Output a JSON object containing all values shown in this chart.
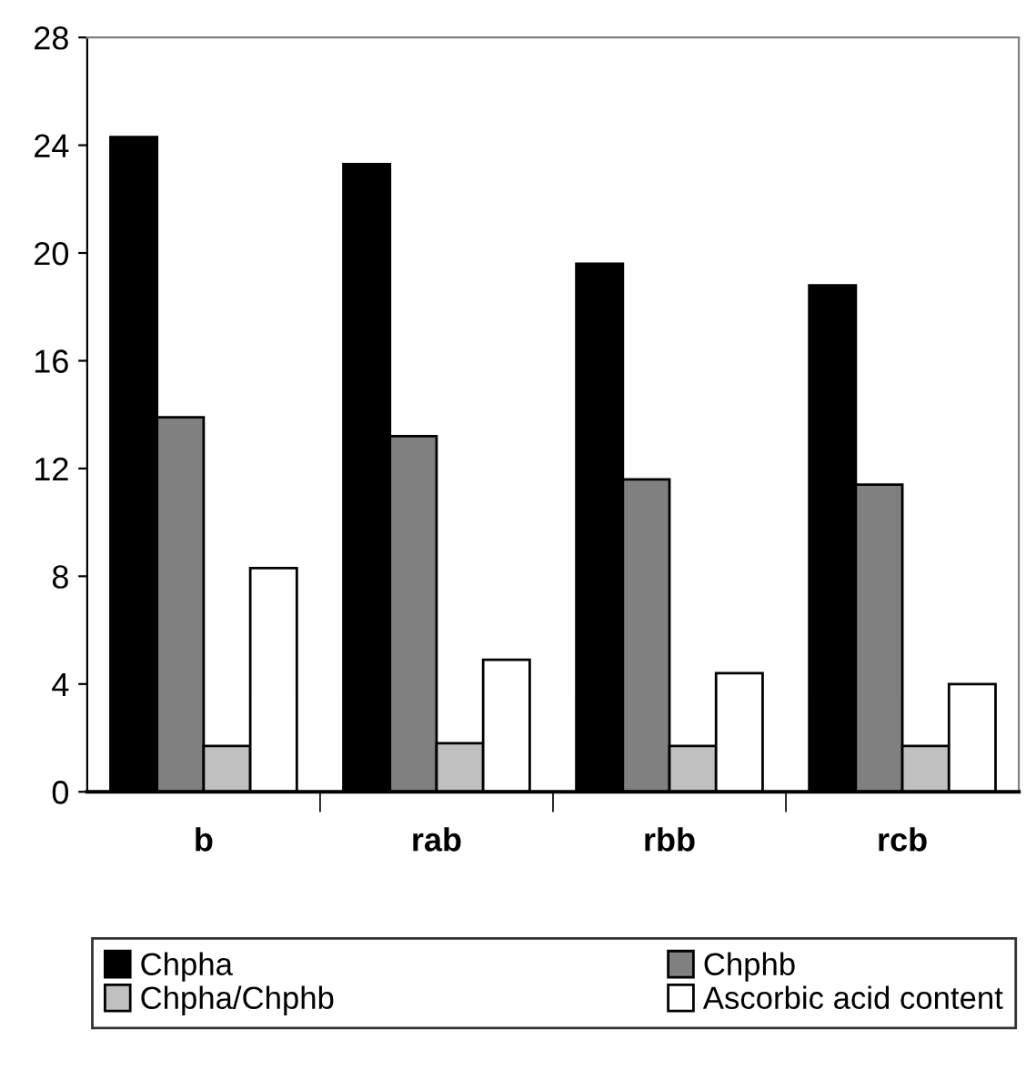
{
  "chart_data": {
    "type": "bar",
    "categories": [
      "b",
      "rab",
      "rbb",
      "rcb"
    ],
    "series": [
      {
        "name": "Chpha",
        "color": "#000000",
        "values": [
          24.3,
          23.3,
          19.6,
          18.8
        ]
      },
      {
        "name": "Chphb",
        "color": "#808080",
        "values": [
          13.9,
          13.2,
          11.6,
          11.4
        ]
      },
      {
        "name": "Chpha/Chphb",
        "color": "#c0c0c0",
        "values": [
          1.7,
          1.8,
          1.7,
          1.7
        ]
      },
      {
        "name": "Ascorbic acid content",
        "color": "#ffffff",
        "values": [
          8.3,
          4.9,
          4.4,
          4.0
        ]
      }
    ],
    "ylim": [
      0,
      28
    ],
    "yticks": [
      0,
      4,
      8,
      12,
      16,
      20,
      24,
      28
    ],
    "grid": false,
    "legend": "bottom"
  }
}
